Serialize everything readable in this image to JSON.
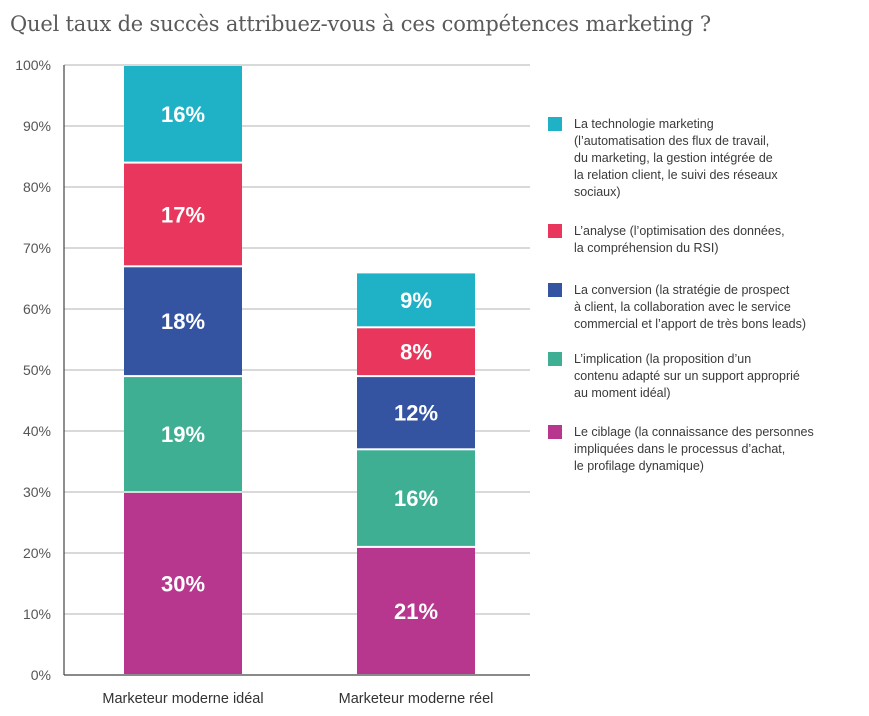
{
  "chart_data": {
    "type": "bar",
    "stacked": true,
    "title": "Quel taux de succès attribuez-vous à ces compétences marketing ?",
    "categories": [
      "Marketeur moderne idéal",
      "Marketeur moderne réel"
    ],
    "ylim": [
      0,
      100
    ],
    "yticks": [
      "0%",
      "10%",
      "20%",
      "30%",
      "40%",
      "50%",
      "60%",
      "70%",
      "80%",
      "90%",
      "100%"
    ],
    "grid": true,
    "legend_position": "right",
    "series": [
      {
        "name": "Le ciblage (la connaissance des personnes impliquées dans le processus d’achat, le profilage dynamique)",
        "legend_lines": "Le ciblage (la connaissance des personnes\nimpliquées dans le processus d’achat,\nle profilage dynamique)",
        "color": "#b8378e",
        "values": [
          30,
          21
        ],
        "labels": [
          "30%",
          "21%"
        ]
      },
      {
        "name": "L’implication (la proposition d’un contenu adapté sur un support approprié au moment idéal)",
        "legend_lines": "L’implication (la proposition d’un\ncontenu adapté sur un support approprié\nau moment idéal)",
        "color": "#3eaf93",
        "values": [
          19,
          16
        ],
        "labels": [
          "19%",
          "16%"
        ]
      },
      {
        "name": "La conversion (la stratégie de prospect à client, la collaboration avec le service commercial et l’apport de très bons leads)",
        "legend_lines": "La conversion (la stratégie de prospect\nà client, la collaboration avec le service\ncommercial et l’apport de très bons leads)",
        "color": "#3454a2",
        "values": [
          18,
          12
        ],
        "labels": [
          "18%",
          "12%"
        ]
      },
      {
        "name": "L’analyse (l’optimisation des données, la compréhension du RSI)",
        "legend_lines": "L’analyse (l’optimisation des données,\nla compréhension du RSI)",
        "color": "#e8365c",
        "values": [
          17,
          8
        ],
        "labels": [
          "17%",
          "8%"
        ]
      },
      {
        "name": "La technologie marketing (l’automatisation des flux de travail, du marketing, la gestion intégrée de la relation client, le suivi des réseaux sociaux)",
        "legend_lines": "La technologie marketing\n(l’automatisation des flux de travail,\ndu marketing, la gestion intégrée de\nla relation client, le suivi des réseaux\nsociaux)",
        "color": "#1fb1c6",
        "values": [
          16,
          9
        ],
        "labels": [
          "16%",
          "9%"
        ]
      }
    ]
  }
}
